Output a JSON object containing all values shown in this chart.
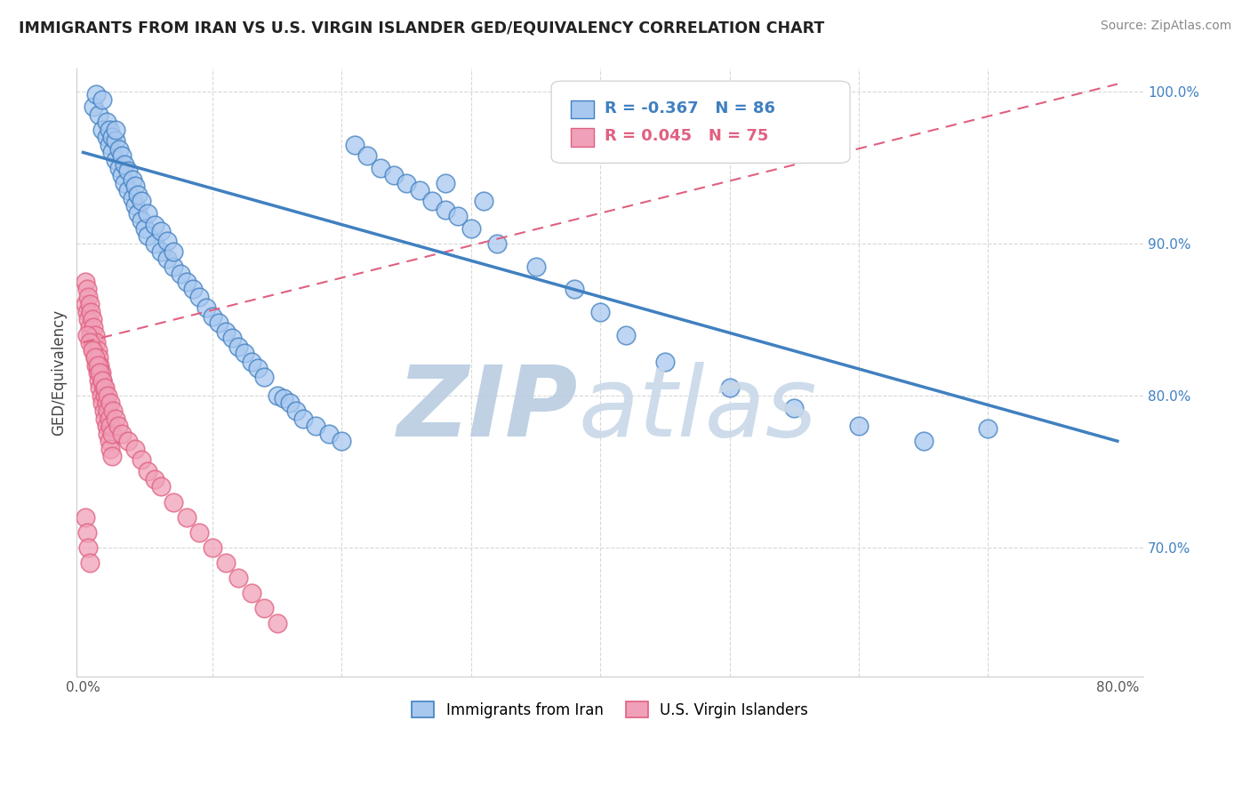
{
  "title": "IMMIGRANTS FROM IRAN VS U.S. VIRGIN ISLANDER GED/EQUIVALENCY CORRELATION CHART",
  "source": "Source: ZipAtlas.com",
  "xlabel_blue": "Immigrants from Iran",
  "xlabel_pink": "U.S. Virgin Islanders",
  "ylabel": "GED/Equivalency",
  "xlim": [
    -0.005,
    0.82
  ],
  "ylim": [
    0.615,
    1.015
  ],
  "y_ticks": [
    0.7,
    0.8,
    0.9,
    1.0
  ],
  "y_tick_labels": [
    "70.0%",
    "80.0%",
    "90.0%",
    "100.0%"
  ],
  "blue_R": "-0.367",
  "blue_N": "86",
  "pink_R": "0.045",
  "pink_N": "75",
  "blue_color": "#A8C8F0",
  "pink_color": "#F0A0B8",
  "blue_line_color": "#4080C0",
  "pink_line_color": "#E06080",
  "watermark_zip_color": "#B8CCE0",
  "watermark_atlas_color": "#C8D8E8",
  "grid_color": "#D8D8D8",
  "blue_line_x0": 0.0,
  "blue_line_y0": 0.96,
  "blue_line_x1": 0.8,
  "blue_line_y1": 0.77,
  "pink_line_x0": 0.0,
  "pink_line_y0": 0.835,
  "pink_line_x1": 0.8,
  "pink_line_y1": 1.005,
  "blue_scatter_x": [
    0.008,
    0.01,
    0.012,
    0.015,
    0.015,
    0.018,
    0.018,
    0.02,
    0.02,
    0.022,
    0.022,
    0.025,
    0.025,
    0.025,
    0.028,
    0.028,
    0.03,
    0.03,
    0.032,
    0.032,
    0.035,
    0.035,
    0.038,
    0.038,
    0.04,
    0.04,
    0.042,
    0.042,
    0.045,
    0.045,
    0.048,
    0.05,
    0.05,
    0.055,
    0.055,
    0.06,
    0.06,
    0.065,
    0.065,
    0.07,
    0.07,
    0.075,
    0.08,
    0.085,
    0.09,
    0.095,
    0.1,
    0.105,
    0.11,
    0.115,
    0.12,
    0.125,
    0.13,
    0.135,
    0.14,
    0.15,
    0.155,
    0.16,
    0.165,
    0.17,
    0.18,
    0.19,
    0.2,
    0.21,
    0.22,
    0.23,
    0.24,
    0.25,
    0.26,
    0.27,
    0.28,
    0.29,
    0.3,
    0.32,
    0.35,
    0.38,
    0.4,
    0.42,
    0.45,
    0.5,
    0.55,
    0.6,
    0.65,
    0.7,
    0.28,
    0.31
  ],
  "blue_scatter_y": [
    0.99,
    0.998,
    0.985,
    0.975,
    0.995,
    0.97,
    0.98,
    0.965,
    0.975,
    0.96,
    0.97,
    0.955,
    0.968,
    0.975,
    0.95,
    0.962,
    0.945,
    0.958,
    0.94,
    0.952,
    0.935,
    0.948,
    0.93,
    0.942,
    0.925,
    0.938,
    0.92,
    0.932,
    0.915,
    0.928,
    0.91,
    0.905,
    0.92,
    0.9,
    0.912,
    0.895,
    0.908,
    0.89,
    0.902,
    0.885,
    0.895,
    0.88,
    0.875,
    0.87,
    0.865,
    0.858,
    0.852,
    0.848,
    0.842,
    0.838,
    0.832,
    0.828,
    0.822,
    0.818,
    0.812,
    0.8,
    0.798,
    0.795,
    0.79,
    0.785,
    0.78,
    0.775,
    0.77,
    0.965,
    0.958,
    0.95,
    0.945,
    0.94,
    0.935,
    0.928,
    0.922,
    0.918,
    0.91,
    0.9,
    0.885,
    0.87,
    0.855,
    0.84,
    0.822,
    0.805,
    0.792,
    0.78,
    0.77,
    0.778,
    0.94,
    0.928
  ],
  "pink_scatter_x": [
    0.002,
    0.002,
    0.003,
    0.003,
    0.004,
    0.004,
    0.005,
    0.005,
    0.006,
    0.006,
    0.007,
    0.007,
    0.008,
    0.008,
    0.009,
    0.009,
    0.01,
    0.01,
    0.011,
    0.011,
    0.012,
    0.012,
    0.013,
    0.013,
    0.014,
    0.014,
    0.015,
    0.015,
    0.016,
    0.016,
    0.017,
    0.017,
    0.018,
    0.018,
    0.019,
    0.019,
    0.02,
    0.02,
    0.021,
    0.021,
    0.022,
    0.022,
    0.003,
    0.005,
    0.007,
    0.009,
    0.011,
    0.013,
    0.015,
    0.017,
    0.019,
    0.021,
    0.023,
    0.025,
    0.027,
    0.03,
    0.035,
    0.04,
    0.045,
    0.05,
    0.055,
    0.06,
    0.07,
    0.08,
    0.09,
    0.1,
    0.11,
    0.12,
    0.13,
    0.14,
    0.15,
    0.002,
    0.003,
    0.004,
    0.005
  ],
  "pink_scatter_y": [
    0.875,
    0.86,
    0.87,
    0.855,
    0.865,
    0.85,
    0.86,
    0.845,
    0.855,
    0.84,
    0.85,
    0.835,
    0.845,
    0.83,
    0.84,
    0.825,
    0.835,
    0.82,
    0.83,
    0.815,
    0.825,
    0.81,
    0.82,
    0.805,
    0.815,
    0.8,
    0.81,
    0.795,
    0.805,
    0.79,
    0.8,
    0.785,
    0.795,
    0.78,
    0.79,
    0.775,
    0.785,
    0.77,
    0.78,
    0.765,
    0.775,
    0.76,
    0.84,
    0.835,
    0.83,
    0.825,
    0.82,
    0.815,
    0.81,
    0.805,
    0.8,
    0.795,
    0.79,
    0.785,
    0.78,
    0.775,
    0.77,
    0.765,
    0.758,
    0.75,
    0.745,
    0.74,
    0.73,
    0.72,
    0.71,
    0.7,
    0.69,
    0.68,
    0.67,
    0.66,
    0.65,
    0.72,
    0.71,
    0.7,
    0.69
  ]
}
